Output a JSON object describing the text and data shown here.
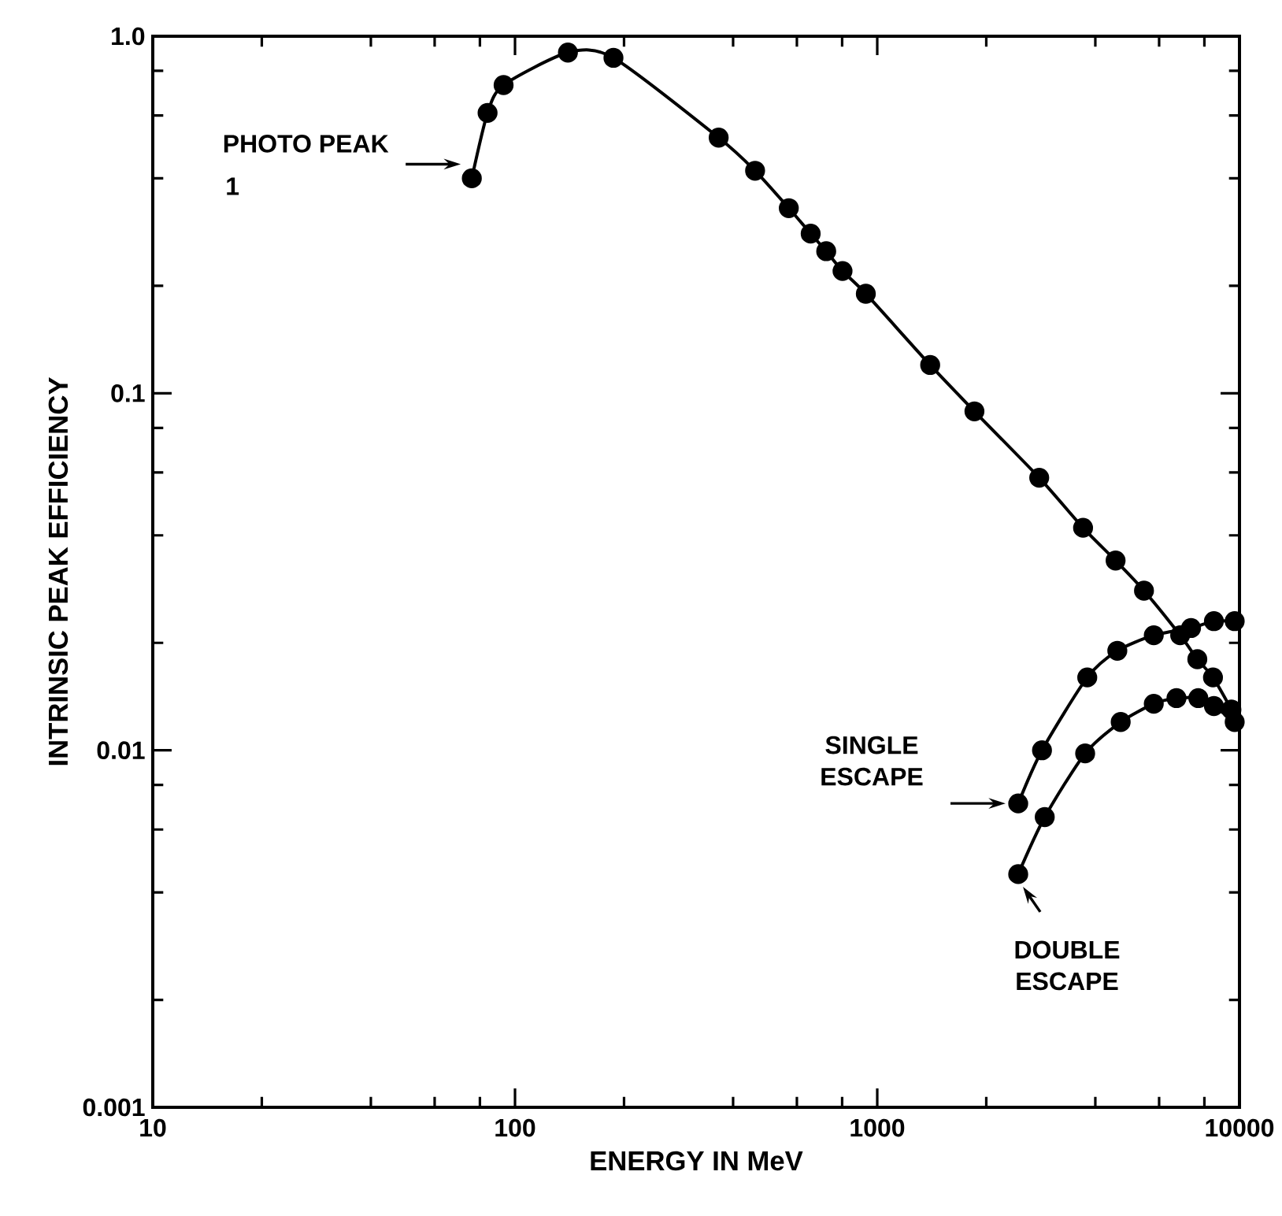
{
  "chart_data": {
    "type": "line",
    "xlabel": "ENERGY IN MeV",
    "ylabel": "INTRINSIC PEAK EFFICIENCY",
    "log": "xy",
    "xlim": [
      10,
      10000
    ],
    "ylim": [
      0.001,
      1
    ],
    "xticks": [
      10,
      {
        "value": 20,
        "label": null
      },
      {
        "value": 40,
        "label": null
      },
      {
        "value": 60,
        "label": null
      },
      {
        "value": 80,
        "label": null
      },
      100,
      {
        "value": 200,
        "label": null
      },
      {
        "value": 400,
        "label": null
      },
      {
        "value": 600,
        "label": null
      },
      {
        "value": 800,
        "label": null
      },
      1000,
      {
        "value": 2000,
        "label": null
      },
      {
        "value": 4000,
        "label": null
      },
      {
        "value": 6000,
        "label": null
      },
      {
        "value": 8000,
        "label": null
      },
      10000
    ],
    "yticks": [
      0.001,
      {
        "value": 0.002,
        "label": null
      },
      {
        "value": 0.004,
        "label": null
      },
      {
        "value": 0.006,
        "label": null
      },
      {
        "value": 0.008,
        "label": null
      },
      0.01,
      {
        "value": 0.02,
        "label": null
      },
      {
        "value": 0.04,
        "label": null
      },
      {
        "value": 0.06,
        "label": null
      },
      {
        "value": 0.08,
        "label": null
      },
      0.1,
      {
        "value": 0.2,
        "label": null
      },
      {
        "value": 0.4,
        "label": null
      },
      {
        "value": 0.6,
        "label": null
      },
      {
        "value": 0.8,
        "label": null
      },
      {
        "value": 1,
        "label": "1.0"
      }
    ],
    "marker": "circle",
    "line_style": "solid",
    "series": [
      {
        "color": "#000000",
        "x": [
          76,
          84,
          93,
          140,
          187,
          365,
          460,
          570,
          655,
          723,
          802,
          930,
          1400,
          1855,
          2800,
          3700,
          4550,
          5450,
          6860,
          7650,
          8450,
          9500
        ],
        "values": [
          0.4,
          0.61,
          0.73,
          0.9,
          0.87,
          0.52,
          0.42,
          0.33,
          0.28,
          0.25,
          0.22,
          0.19,
          0.12,
          0.089,
          0.058,
          0.042,
          0.034,
          0.028,
          0.021,
          0.018,
          0.016,
          0.013
        ]
      },
      {
        "color": "#000000",
        "x": [
          2450,
          2850,
          3800,
          4600,
          5800,
          7350,
          8500,
          9700
        ],
        "values": [
          0.0071,
          0.01,
          0.016,
          0.019,
          0.021,
          0.022,
          0.023,
          0.023
        ]
      },
      {
        "color": "#000000",
        "x": [
          2450,
          2900,
          3750,
          4700,
          5800,
          6700,
          7700,
          8500,
          9700
        ],
        "values": [
          0.0045,
          0.0065,
          0.0098,
          0.012,
          0.0135,
          0.014,
          0.014,
          0.0133,
          0.012
        ]
      }
    ],
    "annotations": [
      "PHOTO PEAK",
      "1",
      "SINGLE ESCAPE",
      "DOUBLE ESCAPE"
    ]
  }
}
